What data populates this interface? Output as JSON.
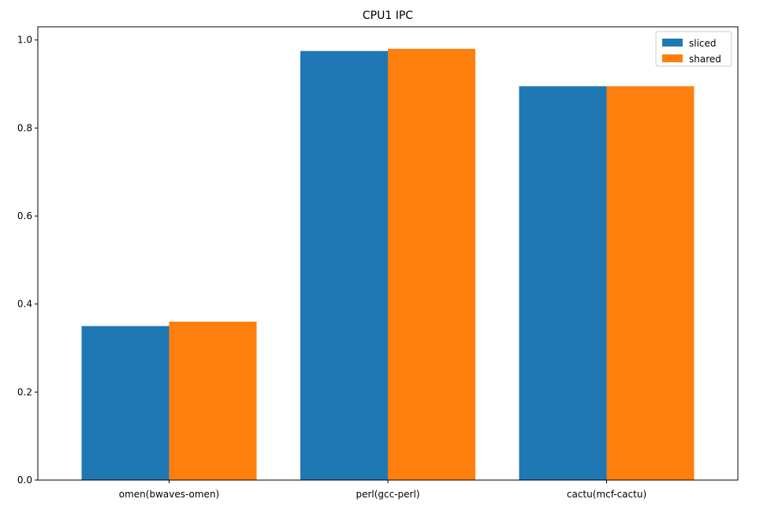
{
  "chart_data": {
    "type": "bar",
    "title": "CPU1 IPC",
    "xlabel": "",
    "ylabel": "",
    "categories": [
      "omen(bwaves-omen)",
      "perl(gcc-perl)",
      "cactu(mcf-cactu)"
    ],
    "series": [
      {
        "name": "sliced",
        "color": "#1f77b4",
        "values": [
          0.35,
          0.975,
          0.895
        ]
      },
      {
        "name": "shared",
        "color": "#ff7f0e",
        "values": [
          0.36,
          0.98,
          0.895
        ]
      }
    ],
    "ylim": [
      0,
      1.03
    ],
    "yticks": [
      0.0,
      0.2,
      0.4,
      0.6,
      0.8,
      1.0
    ],
    "ytick_labels": [
      "0.0",
      "0.2",
      "0.4",
      "0.6",
      "0.8",
      "1.0"
    ],
    "grid": false,
    "legend_position": "top-right"
  }
}
